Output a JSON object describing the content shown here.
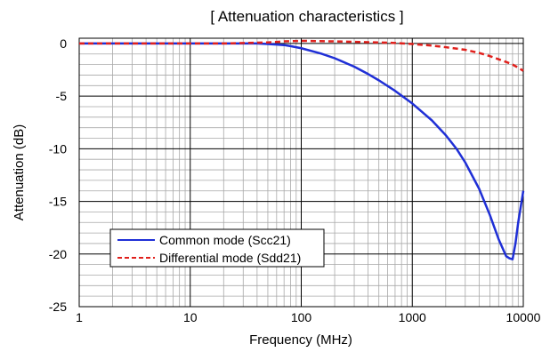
{
  "chart_data": {
    "type": "line",
    "title": "[ Attenuation characteristics ]",
    "xlabel": "Frequency (MHz)",
    "ylabel": "Attenuation (dB)",
    "x_scale": "log",
    "xlim": [
      1,
      10000
    ],
    "ylim": [
      -25,
      0.5
    ],
    "x_ticks": [
      1,
      10,
      100,
      1000,
      10000
    ],
    "x_tick_labels": [
      "1",
      "10",
      "100",
      "1000",
      "10000"
    ],
    "y_ticks": [
      0,
      -5,
      -10,
      -15,
      -20,
      -25
    ],
    "y_tick_labels": [
      "0",
      "-5",
      "-10",
      "-15",
      "-20",
      "-25"
    ],
    "grid": true,
    "legend_position": "lower-left",
    "series": [
      {
        "name": "Common mode (Scc21)",
        "color": "#1f2fd6",
        "style": "solid",
        "x": [
          1,
          10,
          20,
          30,
          40,
          50,
          60,
          70,
          80,
          100,
          150,
          200,
          300,
          400,
          500,
          700,
          1000,
          1500,
          2000,
          2500,
          3000,
          4000,
          5000,
          6000,
          7000,
          7500,
          8000,
          8500,
          9000,
          10000
        ],
        "y": [
          0,
          0,
          0,
          0,
          0,
          -0.05,
          -0.1,
          -0.15,
          -0.25,
          -0.45,
          -0.95,
          -1.4,
          -2.2,
          -2.9,
          -3.5,
          -4.5,
          -5.7,
          -7.3,
          -8.7,
          -10.0,
          -11.3,
          -13.8,
          -16.3,
          -18.6,
          -20.2,
          -20.4,
          -20.5,
          -19.0,
          -17.0,
          -14.0
        ]
      },
      {
        "name": "Differential mode (Sdd21)",
        "color": "#e0201c",
        "style": "dashed",
        "x": [
          1,
          10,
          20,
          50,
          70,
          100,
          200,
          500,
          700,
          1000,
          1500,
          2000,
          3000,
          4000,
          5000,
          6000,
          7000,
          8000,
          9000,
          10000
        ],
        "y": [
          0,
          0,
          0,
          0.1,
          0.2,
          0.25,
          0.2,
          0.1,
          0.05,
          -0.05,
          -0.2,
          -0.35,
          -0.6,
          -0.9,
          -1.2,
          -1.5,
          -1.75,
          -2.0,
          -2.3,
          -2.6
        ]
      }
    ]
  }
}
